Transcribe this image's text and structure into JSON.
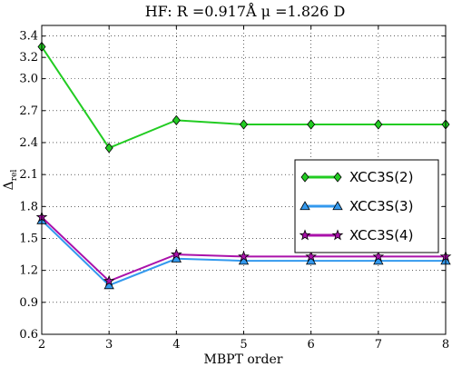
{
  "chart_data": {
    "type": "line",
    "title": "HF: R =0.917Å μ =1.826 D",
    "xlabel": "MBPT order",
    "ylabel": "Δ",
    "ylabel_sub": "rel",
    "xlim": [
      2,
      8
    ],
    "ylim": [
      0.6,
      3.5
    ],
    "xticks": [
      "2",
      "3",
      "4",
      "5",
      "6",
      "7",
      "8"
    ],
    "yticks": [
      "0.6",
      "0.9",
      "1.2",
      "1.5",
      "1.8",
      "2.1",
      "2.4",
      "2.7",
      "3.0",
      "3.2",
      "3.4"
    ],
    "grid": true,
    "legend_position": "right",
    "x": [
      2,
      3,
      4,
      5,
      6,
      7,
      8
    ],
    "series": [
      {
        "name": "XCC3S(2)",
        "values": [
          3.3,
          2.35,
          2.61,
          2.57,
          2.57,
          2.57,
          2.57
        ],
        "color": "#22cc22",
        "marker": "diamond"
      },
      {
        "name": "XCC3S(3)",
        "values": [
          1.67,
          1.06,
          1.31,
          1.29,
          1.29,
          1.29,
          1.29
        ],
        "color": "#3399ee",
        "marker": "triangle"
      },
      {
        "name": "XCC3S(4)",
        "values": [
          1.7,
          1.1,
          1.35,
          1.33,
          1.33,
          1.33,
          1.33
        ],
        "color": "#aa11aa",
        "marker": "star"
      }
    ]
  }
}
